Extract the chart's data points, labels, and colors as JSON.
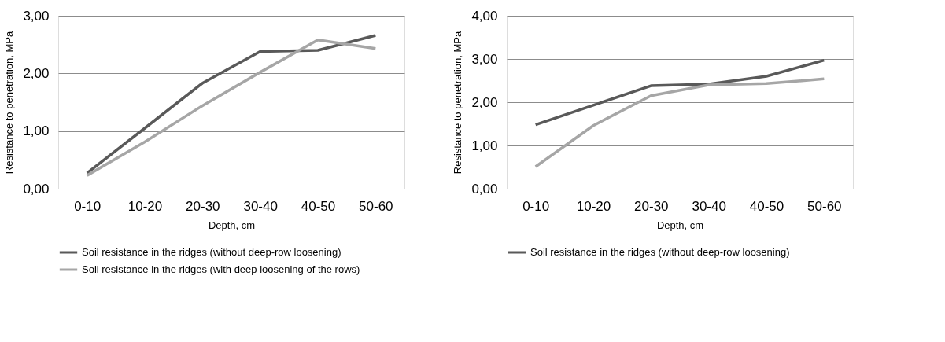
{
  "chart_data": [
    {
      "type": "line",
      "xlabel": "Depth, cm",
      "ylabel": "Resistance to penetration,  MPa",
      "categories": [
        "0-10",
        "10-20",
        "20-30",
        "30-40",
        "40-50",
        "50-60"
      ],
      "series": [
        {
          "name": "Soil resistance in the ridges (without deep-row loosening)",
          "color": "#595959",
          "values": [
            0.27,
            1.05,
            1.83,
            2.38,
            2.4,
            2.66
          ]
        },
        {
          "name": "Soil resistance in the ridges (with deep loosening of the rows)",
          "color": "#a6a6a6",
          "values": [
            0.23,
            0.81,
            1.44,
            2.02,
            2.58,
            2.43
          ]
        }
      ],
      "ylim": [
        0,
        3
      ],
      "yticks": [
        {
          "value": 0,
          "label": "0,00"
        },
        {
          "value": 1,
          "label": "1,00"
        },
        {
          "value": 2,
          "label": "2,00"
        },
        {
          "value": 3,
          "label": "3,00"
        }
      ],
      "grid": "y",
      "legend": "bottom",
      "line_style": "solid",
      "marker": "none"
    },
    {
      "type": "line",
      "xlabel": "Depth, cm",
      "ylabel": "Resistance to penetration,  MPa",
      "categories": [
        "0-10",
        "10-20",
        "20-30",
        "30-40",
        "40-50",
        "50-60"
      ],
      "series": [
        {
          "name": "Soil resistance in the ridges (without deep-row loosening)",
          "color": "#595959",
          "values": [
            1.48,
            1.93,
            2.38,
            2.42,
            2.6,
            2.97
          ]
        },
        {
          "color": "#a6a6a6",
          "values": [
            0.51,
            1.46,
            2.15,
            2.4,
            2.43,
            2.54
          ]
        }
      ],
      "ylim": [
        0,
        4
      ],
      "yticks": [
        {
          "value": 0,
          "label": "0,00"
        },
        {
          "value": 1,
          "label": "1,00"
        },
        {
          "value": 2,
          "label": "2,00"
        },
        {
          "value": 3,
          "label": "3,00"
        },
        {
          "value": 4,
          "label": "4,00"
        }
      ],
      "grid": "y",
      "legend": "bottom",
      "line_style": "solid",
      "marker": "none"
    }
  ]
}
